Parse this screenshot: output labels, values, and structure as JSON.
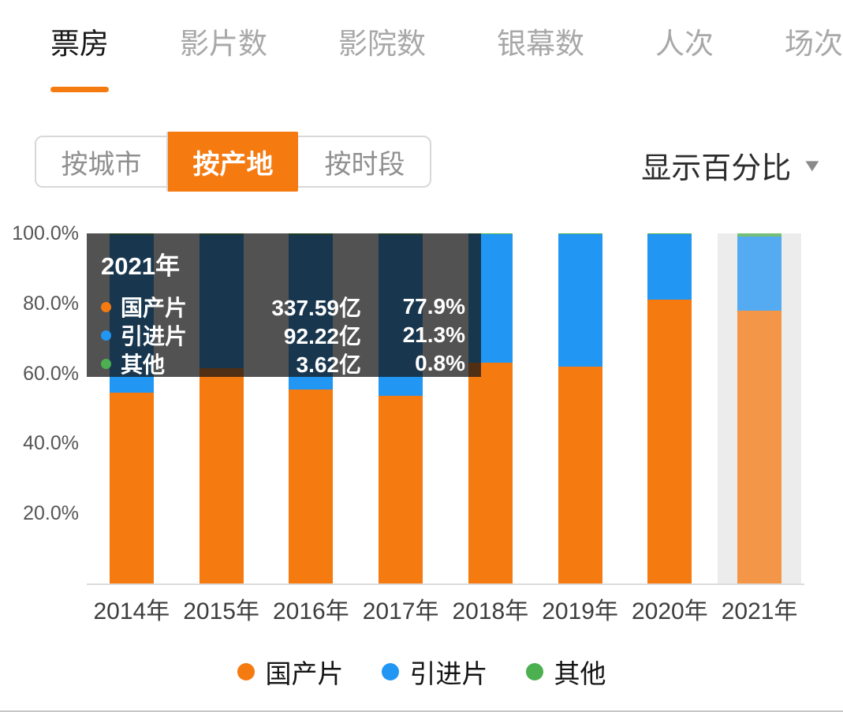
{
  "tabs": [
    {
      "id": "box-office",
      "label": "票房",
      "active": true
    },
    {
      "id": "film-count",
      "label": "影片数",
      "active": false
    },
    {
      "id": "cinema-count",
      "label": "影院数",
      "active": false
    },
    {
      "id": "screen-count",
      "label": "银幕数",
      "active": false
    },
    {
      "id": "admissions",
      "label": "人次",
      "active": false
    },
    {
      "id": "screenings",
      "label": "场次",
      "active": false
    }
  ],
  "filters": [
    {
      "id": "by-city",
      "label": "按城市",
      "active": false
    },
    {
      "id": "by-origin",
      "label": "按产地",
      "active": true
    },
    {
      "id": "by-time",
      "label": "按时段",
      "active": false
    }
  ],
  "display_mode": {
    "label": "显示百分比"
  },
  "tooltip": {
    "title": "2021年",
    "rows": [
      {
        "id": "domestic",
        "name": "国产片",
        "value": "337.59亿",
        "percent": "77.9%",
        "color": "#F57A10"
      },
      {
        "id": "imported",
        "name": "引进片",
        "value": "92.22亿",
        "percent": "21.3%",
        "color": "#2196F3"
      },
      {
        "id": "other",
        "name": "其他",
        "value": "3.62亿",
        "percent": "0.8%",
        "color": "#4CAF50"
      }
    ]
  },
  "chart_data": {
    "type": "bar",
    "stacked": true,
    "unit": "percent",
    "title": "票房 按产地 百分比堆叠图",
    "categories": [
      "2014年",
      "2015年",
      "2016年",
      "2017年",
      "2018年",
      "2019年",
      "2020年",
      "2021年"
    ],
    "series": [
      {
        "id": "domestic",
        "name": "国产片",
        "color": "#F57A10",
        "values": [
          54.5,
          61.5,
          55.5,
          53.5,
          63.0,
          62.0,
          81.0,
          77.9
        ]
      },
      {
        "id": "imported",
        "name": "引进片",
        "color": "#2196F3",
        "values": [
          45.0,
          38.0,
          44.0,
          46.0,
          36.7,
          37.7,
          18.7,
          21.3
        ]
      },
      {
        "id": "other",
        "name": "其他",
        "color": "#4CAF50",
        "values": [
          0.5,
          0.5,
          0.5,
          0.5,
          0.3,
          0.3,
          0.3,
          0.8
        ]
      }
    ],
    "y_ticks": [
      "100.0%",
      "80.0%",
      "60.0%",
      "40.0%",
      "20.0%"
    ],
    "ylim": [
      0,
      100
    ],
    "grid": false,
    "highlighted_category": "2021年",
    "legend_position": "bottom"
  },
  "legend": [
    {
      "id": "domestic",
      "label": "国产片",
      "color": "#F57A10"
    },
    {
      "id": "imported",
      "label": "引进片",
      "color": "#2196F3"
    },
    {
      "id": "other",
      "label": "其他",
      "color": "#4CAF50"
    }
  ]
}
